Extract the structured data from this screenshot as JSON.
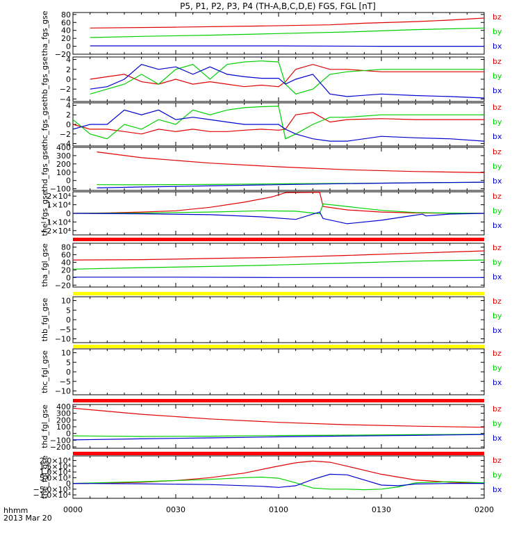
{
  "title": "P5, P1, P2, P3, P4 (TH-A,B,C,D,E) FGS, FGL [nT]",
  "time_axis": {
    "ticks": [
      "0000",
      "0030",
      "0100",
      "0130",
      "0200"
    ],
    "tick_minutes": [
      0,
      30,
      60,
      90,
      120
    ],
    "minor_step_minutes": 5,
    "label_line1": "hhmm",
    "label_line2": "2013 Mar 20"
  },
  "colors": {
    "bz": "#e00000",
    "by": "#00d000",
    "bx": "#0000d0",
    "bar_red": "#ff0000",
    "bar_yellow": "#ffff00"
  },
  "chart_data": [
    {
      "type": "line",
      "panel": "tha_fgs_gse",
      "ylabel": "tha_fgs_gse",
      "ylim": [
        -20,
        85
      ],
      "yticks": [
        {
          "v": 80,
          "t": "80"
        },
        {
          "v": 60,
          "t": "60"
        },
        {
          "v": 40,
          "t": "40"
        },
        {
          "v": 20,
          "t": "20"
        },
        {
          "v": 0,
          "t": "0"
        },
        {
          "v": -20,
          "t": "−20"
        }
      ],
      "legend": [
        "bz",
        "by",
        "bx"
      ],
      "series": [
        {
          "name": "bz",
          "x": [
            5,
            30,
            55,
            75,
            85,
            100,
            110,
            120
          ],
          "y": [
            46,
            48,
            51,
            54,
            58,
            62,
            66,
            71
          ]
        },
        {
          "name": "by",
          "x": [
            5,
            20,
            40,
            60,
            80,
            100,
            120
          ],
          "y": [
            22,
            25,
            28,
            32,
            36,
            42,
            46
          ]
        },
        {
          "name": "bx",
          "x": [
            5,
            30,
            60,
            90,
            120
          ],
          "y": [
            1,
            1,
            1,
            0,
            0
          ]
        }
      ]
    },
    {
      "type": "line",
      "panel": "thb_fgs_gse",
      "ylabel": "thb_fgs_gse",
      "ylim": [
        -4.5,
        4.5
      ],
      "yticks": [
        {
          "v": 4,
          "t": "4"
        },
        {
          "v": 2,
          "t": "2"
        },
        {
          "v": 0,
          "t": "0"
        },
        {
          "v": -2,
          "t": "−2"
        },
        {
          "v": -4,
          "t": "−4"
        }
      ],
      "legend": [
        "bz",
        "by",
        "bx"
      ],
      "series": [
        {
          "name": "bz",
          "x": [
            5,
            10,
            15,
            20,
            25,
            30,
            35,
            40,
            45,
            50,
            55,
            60,
            62,
            65,
            70,
            75,
            80,
            90,
            100,
            110,
            120
          ],
          "y": [
            0,
            0.5,
            1,
            -0.5,
            -1,
            0,
            -1,
            -0.5,
            -1,
            -1.5,
            -1.2,
            -1.5,
            -0.5,
            2,
            3,
            2,
            2,
            1.5,
            1.5,
            1.5,
            1.5
          ]
        },
        {
          "name": "by",
          "x": [
            5,
            10,
            15,
            20,
            25,
            30,
            35,
            40,
            45,
            50,
            55,
            60,
            62,
            65,
            70,
            75,
            80,
            90,
            100,
            110,
            120
          ],
          "y": [
            -3,
            -2,
            -1,
            1,
            -1,
            2,
            3,
            0,
            3,
            3.5,
            3.7,
            3.5,
            -1,
            -3,
            -2,
            1,
            1.5,
            2,
            2,
            2,
            2
          ]
        },
        {
          "name": "bx",
          "x": [
            5,
            10,
            15,
            20,
            25,
            30,
            35,
            40,
            45,
            50,
            55,
            60,
            62,
            65,
            70,
            75,
            80,
            90,
            100,
            110,
            120
          ],
          "y": [
            -2,
            -1.5,
            0,
            3,
            2,
            2.5,
            1,
            2.5,
            1,
            0.5,
            0.2,
            0.2,
            -1,
            0,
            1,
            -3,
            -3.5,
            -3,
            -3.3,
            -3.5,
            -3.8
          ]
        }
      ]
    },
    {
      "type": "line",
      "panel": "thc_fgs_gse",
      "ylabel": "thc_fgs_gse",
      "ylim": [
        -4.5,
        4.5
      ],
      "yticks": [
        {
          "v": 4,
          "t": "4"
        },
        {
          "v": 2,
          "t": "2"
        },
        {
          "v": 0,
          "t": "0"
        },
        {
          "v": -2,
          "t": "−2"
        },
        {
          "v": -4,
          "t": "−4"
        }
      ],
      "legend": [
        "bz",
        "by",
        "bx"
      ],
      "series": [
        {
          "name": "bz",
          "x": [
            0,
            5,
            10,
            15,
            20,
            25,
            30,
            35,
            40,
            45,
            50,
            55,
            60,
            62,
            65,
            70,
            75,
            80,
            90,
            100,
            110,
            120
          ],
          "y": [
            0,
            -1,
            -1,
            -1.5,
            -2,
            -1,
            -1.5,
            -1,
            -1.5,
            -1.5,
            -1.2,
            -1,
            -1.2,
            -1,
            2,
            2.5,
            0.5,
            1,
            1.2,
            1,
            1,
            1
          ]
        },
        {
          "name": "by",
          "x": [
            0,
            5,
            10,
            15,
            20,
            25,
            30,
            35,
            40,
            45,
            50,
            55,
            60,
            62,
            65,
            70,
            75,
            80,
            90,
            100,
            110,
            120
          ],
          "y": [
            1,
            -2,
            -3,
            0,
            -1,
            1,
            0,
            3,
            2,
            3,
            3.5,
            3.7,
            3.8,
            -3,
            -2,
            0,
            1.5,
            1.5,
            2,
            2,
            2,
            2
          ]
        },
        {
          "name": "bx",
          "x": [
            0,
            5,
            10,
            15,
            20,
            25,
            30,
            35,
            40,
            45,
            50,
            55,
            60,
            62,
            65,
            70,
            75,
            80,
            90,
            100,
            110,
            120
          ],
          "y": [
            -1,
            0,
            0,
            3,
            2,
            3,
            1,
            1.5,
            1,
            0.5,
            0,
            0,
            0,
            -1,
            -2,
            -3,
            -3.5,
            -3.5,
            -2.5,
            -2.8,
            -3,
            -3.5
          ]
        }
      ]
    },
    {
      "type": "line",
      "panel": "thd_fgs_gse",
      "ylabel": "thd_fgs_gse",
      "ylim": [
        -120,
        400
      ],
      "yticks": [
        {
          "v": 400,
          "t": "400"
        },
        {
          "v": 300,
          "t": "300"
        },
        {
          "v": 200,
          "t": "200"
        },
        {
          "v": 100,
          "t": "100"
        },
        {
          "v": 0,
          "t": "0"
        },
        {
          "v": -100,
          "t": "−100"
        }
      ],
      "legend": [
        "bz",
        "by",
        "bx"
      ],
      "series": [
        {
          "name": "bz",
          "x": [
            7,
            20,
            40,
            60,
            80,
            100,
            120
          ],
          "y": [
            345,
            275,
            210,
            165,
            130,
            108,
            95
          ]
        },
        {
          "name": "by",
          "x": [
            7,
            20,
            40,
            60,
            80,
            100,
            120
          ],
          "y": [
            -50,
            -52,
            -48,
            -40,
            -35,
            -28,
            -22
          ]
        },
        {
          "name": "bx",
          "x": [
            7,
            20,
            40,
            60,
            80,
            100,
            120
          ],
          "y": [
            -90,
            -78,
            -65,
            -50,
            -38,
            -28,
            -20
          ]
        }
      ]
    },
    {
      "type": "line",
      "panel": "the_fgs_gse",
      "ylabel": "the_fgs_gse",
      "ylim": [
        -25000,
        25000
      ],
      "yticks": [
        {
          "v": 20000,
          "t": "2×10⁴"
        },
        {
          "v": 10000,
          "t": "1×10⁴"
        },
        {
          "v": 0,
          "t": "0"
        },
        {
          "v": -10000,
          "t": "−1×10⁴"
        },
        {
          "v": -20000,
          "t": "−2×10⁴"
        }
      ],
      "legend": [
        "bz",
        "by",
        "bx"
      ],
      "series": [
        {
          "name": "bz",
          "x": [
            0,
            10,
            20,
            30,
            40,
            50,
            58,
            62,
            72,
            73,
            80,
            90,
            100,
            110,
            120
          ],
          "y": [
            0,
            500,
            1500,
            3000,
            7000,
            13000,
            19000,
            24000,
            24500,
            8000,
            4000,
            1500,
            500,
            200,
            0
          ]
        },
        {
          "name": "by",
          "x": [
            0,
            20,
            40,
            55,
            65,
            72,
            73,
            80,
            90,
            100,
            110,
            120
          ],
          "y": [
            0,
            300,
            1500,
            3000,
            2500,
            -500,
            11000,
            8000,
            3500,
            1000,
            300,
            0
          ]
        },
        {
          "name": "bx",
          "x": [
            0,
            20,
            40,
            55,
            65,
            72,
            73,
            80,
            90,
            100,
            102,
            103,
            110,
            120
          ],
          "y": [
            0,
            -500,
            -1500,
            -4000,
            -7000,
            1500,
            -6000,
            -12000,
            -8000,
            -2000,
            -1000,
            -3000,
            -800,
            0
          ]
        }
      ]
    },
    {
      "type": "line",
      "panel": "tha_fgl_gse",
      "ylabel": "tha_fgl_gse",
      "ylim": [
        -25,
        90
      ],
      "yticks": [
        {
          "v": 80,
          "t": "80"
        },
        {
          "v": 60,
          "t": "60"
        },
        {
          "v": 40,
          "t": "40"
        },
        {
          "v": 20,
          "t": "20"
        },
        {
          "v": 0,
          "t": "0"
        },
        {
          "v": -20,
          "t": "−20"
        }
      ],
      "legend": [
        "bz",
        "by",
        "bx"
      ],
      "series": [
        {
          "name": "bz",
          "x": [
            0,
            20,
            40,
            60,
            80,
            100,
            120
          ],
          "y": [
            46,
            47,
            50,
            53,
            58,
            64,
            70
          ]
        },
        {
          "name": "by",
          "x": [
            0,
            20,
            40,
            60,
            80,
            100,
            120
          ],
          "y": [
            22,
            26,
            29,
            33,
            38,
            43,
            46
          ]
        },
        {
          "name": "bx",
          "x": [
            0,
            30,
            60,
            90,
            120
          ],
          "y": [
            1,
            1,
            0,
            0,
            0
          ]
        }
      ]
    },
    {
      "type": "line",
      "panel": "thb_fgl_gse",
      "ylabel": "thb_fgl_gse",
      "ylim": [
        -12,
        12
      ],
      "yticks": [
        {
          "v": 10,
          "t": "10"
        },
        {
          "v": 5,
          "t": "5"
        },
        {
          "v": 0,
          "t": "0"
        },
        {
          "v": -5,
          "t": "−5"
        },
        {
          "v": -10,
          "t": "−10"
        }
      ],
      "legend": [
        "bz",
        "by",
        "bx"
      ],
      "series": []
    },
    {
      "type": "line",
      "panel": "thc_fgl_gse",
      "ylabel": "thc_fgl_gse",
      "ylim": [
        -12,
        12
      ],
      "yticks": [
        {
          "v": 10,
          "t": "10"
        },
        {
          "v": 5,
          "t": "5"
        },
        {
          "v": 0,
          "t": "0"
        },
        {
          "v": -5,
          "t": "−5"
        },
        {
          "v": -10,
          "t": "−10"
        }
      ],
      "legend": [
        "bz",
        "by",
        "bx"
      ],
      "series": []
    },
    {
      "type": "line",
      "panel": "thd_fgl_gse",
      "ylabel": "thd_fgl_gse",
      "ylim": [
        -220,
        430
      ],
      "yticks": [
        {
          "v": 400,
          "t": "400"
        },
        {
          "v": 300,
          "t": "300"
        },
        {
          "v": 200,
          "t": "200"
        },
        {
          "v": 100,
          "t": "100"
        },
        {
          "v": 0,
          "t": "0"
        },
        {
          "v": -100,
          "t": "−100"
        },
        {
          "v": -200,
          "t": "−200"
        }
      ],
      "legend": [
        "bz",
        "by",
        "bx"
      ],
      "series": [
        {
          "name": "bz",
          "x": [
            0,
            20,
            40,
            60,
            80,
            100,
            120
          ],
          "y": [
            375,
            285,
            215,
            165,
            130,
            108,
            92
          ]
        },
        {
          "name": "by",
          "x": [
            0,
            20,
            40,
            60,
            80,
            100,
            120
          ],
          "y": [
            -35,
            -45,
            -40,
            -30,
            -25,
            -18,
            -12
          ]
        },
        {
          "name": "bx",
          "x": [
            0,
            20,
            40,
            60,
            80,
            100,
            120
          ],
          "y": [
            -95,
            -80,
            -65,
            -50,
            -38,
            -28,
            -15
          ]
        }
      ]
    },
    {
      "type": "line",
      "panel": "the_fgl_gse",
      "ylabel": "the_fgl_gse",
      "ylim": [
        -13000,
        24000
      ],
      "yticks": [
        {
          "v": 20000,
          "t": "2.0×10⁴"
        },
        {
          "v": 15000,
          "t": "1.5×10⁴"
        },
        {
          "v": 10000,
          "t": "1.0×10⁴"
        },
        {
          "v": 5000,
          "t": "5.0×10³"
        },
        {
          "v": 0,
          "t": "0"
        },
        {
          "v": -5000,
          "t": "−5.0×10³"
        },
        {
          "v": -10000,
          "t": "−1.0×10⁴"
        }
      ],
      "legend": [
        "bz",
        "by",
        "bx"
      ],
      "series": [
        {
          "name": "bz",
          "x": [
            0,
            10,
            20,
            30,
            40,
            50,
            58,
            65,
            70,
            75,
            80,
            90,
            100,
            110,
            120
          ],
          "y": [
            0,
            300,
            1000,
            2500,
            5000,
            9000,
            14000,
            18000,
            19500,
            18500,
            15000,
            8000,
            3000,
            1000,
            0
          ]
        },
        {
          "name": "by",
          "x": [
            0,
            20,
            40,
            50,
            55,
            60,
            65,
            70,
            75,
            80,
            85,
            90,
            95,
            100,
            110,
            120
          ],
          "y": [
            0,
            1500,
            3500,
            5000,
            5500,
            4500,
            500,
            -4000,
            -5000,
            -5000,
            -5500,
            -5000,
            -3000,
            500,
            1500,
            500
          ]
        },
        {
          "name": "bx",
          "x": [
            0,
            20,
            40,
            55,
            60,
            65,
            70,
            75,
            80,
            85,
            90,
            95,
            100,
            110,
            120
          ],
          "y": [
            0,
            -300,
            -1000,
            -2500,
            -3500,
            -2000,
            3500,
            8000,
            7500,
            3000,
            -1500,
            -2000,
            -500,
            0,
            0
          ]
        }
      ]
    }
  ]
}
